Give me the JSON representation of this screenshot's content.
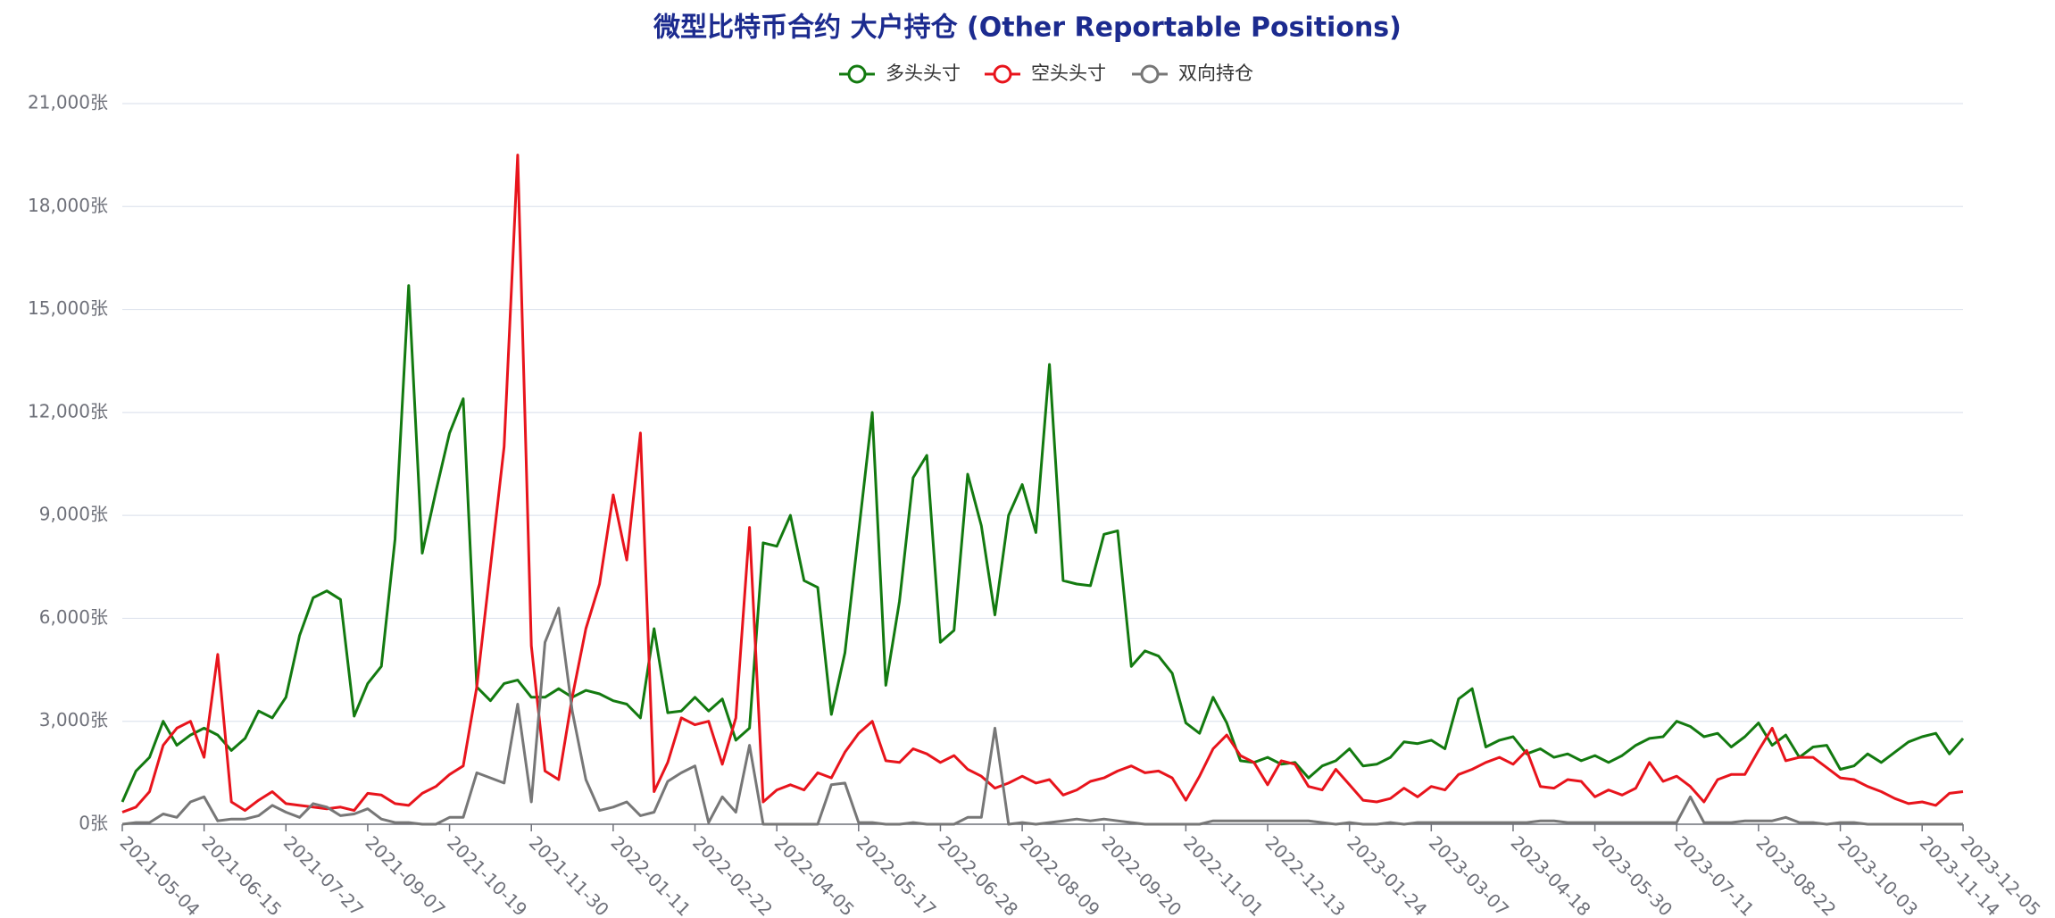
{
  "chart_data": {
    "type": "line",
    "title": "微型比特币合约 大户持仓 (Other Reportable Positions)",
    "categories": [
      "2021-05-04",
      null,
      null,
      null,
      null,
      null,
      "2021-06-15",
      null,
      null,
      null,
      null,
      null,
      "2021-07-27",
      null,
      null,
      null,
      null,
      null,
      "2021-09-07",
      null,
      null,
      null,
      null,
      null,
      "2021-10-19",
      null,
      null,
      null,
      null,
      null,
      "2021-11-30",
      null,
      null,
      null,
      null,
      null,
      "2022-01-11",
      null,
      null,
      null,
      null,
      null,
      "2022-02-22",
      null,
      null,
      null,
      null,
      null,
      "2022-04-05",
      null,
      null,
      null,
      null,
      null,
      "2022-05-17",
      null,
      null,
      null,
      null,
      null,
      "2022-06-28",
      null,
      null,
      null,
      null,
      null,
      "2022-08-09",
      null,
      null,
      null,
      null,
      null,
      "2022-09-20",
      null,
      null,
      null,
      null,
      null,
      "2022-11-01",
      null,
      null,
      null,
      null,
      null,
      "2022-12-13",
      null,
      null,
      null,
      null,
      null,
      "2023-01-24",
      null,
      null,
      null,
      null,
      null,
      "2023-03-07",
      null,
      null,
      null,
      null,
      null,
      "2023-04-18",
      null,
      null,
      null,
      null,
      null,
      "2023-05-30",
      null,
      null,
      null,
      null,
      null,
      "2023-07-11",
      null,
      null,
      null,
      null,
      null,
      "2023-08-22",
      null,
      null,
      null,
      null,
      null,
      "2023-10-03",
      null,
      null,
      null,
      null,
      null,
      "2023-11-14",
      null,
      null,
      "2023-12-05"
    ],
    "series": [
      {
        "name": "多头头寸",
        "color": "#137a10",
        "values": [
          650,
          1550,
          1950,
          3000,
          2300,
          2600,
          2800,
          2600,
          2150,
          2500,
          3300,
          3100,
          3700,
          5500,
          6600,
          6800,
          6550,
          3150,
          4100,
          4600,
          8300,
          15700,
          7900,
          9700,
          11400,
          12400,
          4000,
          3600,
          4100,
          4200,
          3700,
          3700,
          3950,
          3700,
          3900,
          3800,
          3600,
          3500,
          3100,
          5700,
          3250,
          3300,
          3700,
          3300,
          3650,
          2450,
          2800,
          8200,
          8100,
          9000,
          7100,
          6900,
          3200,
          5000,
          8500,
          12000,
          4050,
          6500,
          10100,
          10750,
          5300,
          5650,
          10200,
          8700,
          6100,
          9000,
          9900,
          8500,
          13400,
          7100,
          7000,
          6950,
          8450,
          8550,
          4600,
          5050,
          4900,
          4400,
          2950,
          2650,
          3700,
          2950,
          1850,
          1800,
          1950,
          1750,
          1800,
          1350,
          1700,
          1850,
          2200,
          1700,
          1750,
          1950,
          2400,
          2350,
          2450,
          2200,
          3650,
          3950,
          2250,
          2450,
          2550,
          2050,
          2200,
          1950,
          2050,
          1850,
          2000,
          1800,
          2000,
          2300,
          2500,
          2550,
          3000,
          2850,
          2550,
          2650,
          2250,
          2550,
          2950,
          2300,
          2600,
          1950,
          2250,
          2300,
          1600,
          1700,
          2050,
          1800,
          2100,
          2400,
          2550,
          2650,
          2050,
          2500
        ]
      },
      {
        "name": "空头头寸",
        "color": "#e8141c",
        "values": [
          350,
          500,
          950,
          2300,
          2800,
          3000,
          1950,
          4950,
          650,
          400,
          700,
          950,
          600,
          550,
          500,
          450,
          500,
          400,
          900,
          850,
          600,
          550,
          900,
          1100,
          1450,
          1700,
          4000,
          7500,
          11000,
          19500,
          5200,
          1550,
          1300,
          3700,
          5700,
          7000,
          9600,
          7700,
          11400,
          950,
          1800,
          3100,
          2900,
          3000,
          1750,
          3100,
          8650,
          650,
          1000,
          1150,
          1000,
          1500,
          1350,
          2100,
          2650,
          3000,
          1850,
          1800,
          2200,
          2050,
          1800,
          2000,
          1600,
          1400,
          1050,
          1200,
          1400,
          1200,
          1300,
          850,
          1000,
          1250,
          1350,
          1550,
          1700,
          1500,
          1550,
          1350,
          700,
          1400,
          2200,
          2600,
          2000,
          1800,
          1150,
          1850,
          1750,
          1100,
          1000,
          1600,
          1150,
          700,
          650,
          750,
          1050,
          800,
          1100,
          1000,
          1450,
          1600,
          1800,
          1950,
          1750,
          2150,
          1100,
          1050,
          1300,
          1250,
          800,
          1000,
          850,
          1050,
          1800,
          1250,
          1400,
          1100,
          650,
          1300,
          1450,
          1450,
          2150,
          2800,
          1850,
          1950,
          1950,
          1650,
          1350,
          1300,
          1100,
          950,
          750,
          600,
          650,
          550,
          900,
          950
        ]
      },
      {
        "name": "双向持仓",
        "color": "#777777",
        "values": [
          0,
          50,
          50,
          300,
          200,
          650,
          800,
          100,
          150,
          150,
          250,
          550,
          350,
          200,
          600,
          500,
          250,
          300,
          450,
          150,
          50,
          50,
          0,
          0,
          200,
          200,
          1500,
          1350,
          1200,
          3500,
          650,
          5300,
          6300,
          3300,
          1300,
          400,
          500,
          650,
          250,
          350,
          1250,
          1500,
          1700,
          50,
          800,
          350,
          2300,
          0,
          0,
          0,
          0,
          0,
          1150,
          1200,
          50,
          50,
          0,
          0,
          50,
          0,
          0,
          0,
          200,
          200,
          2800,
          0,
          50,
          0,
          50,
          100,
          150,
          100,
          150,
          100,
          50,
          0,
          0,
          0,
          0,
          0,
          100,
          100,
          100,
          100,
          100,
          100,
          100,
          100,
          50,
          0,
          50,
          0,
          0,
          50,
          0,
          50,
          50,
          50,
          50,
          50,
          50,
          50,
          50,
          50,
          100,
          100,
          50,
          50,
          50,
          50,
          50,
          50,
          50,
          50,
          50,
          800,
          50,
          50,
          50,
          100,
          100,
          100,
          200,
          50,
          50,
          0,
          50,
          50,
          0,
          0,
          0,
          0,
          0,
          0,
          0,
          0
        ]
      }
    ],
    "ylim": [
      0,
      21000
    ],
    "yticks": [
      {
        "value": 0,
        "label": "0张"
      },
      {
        "value": 3000,
        "label": "3,000张"
      },
      {
        "value": 6000,
        "label": "6,000张"
      },
      {
        "value": 9000,
        "label": "9,000张"
      },
      {
        "value": 12000,
        "label": "12,000张"
      },
      {
        "value": 15000,
        "label": "15,000张"
      },
      {
        "value": 18000,
        "label": "18,000张"
      },
      {
        "value": 21000,
        "label": "21,000张"
      }
    ],
    "grid": true
  }
}
